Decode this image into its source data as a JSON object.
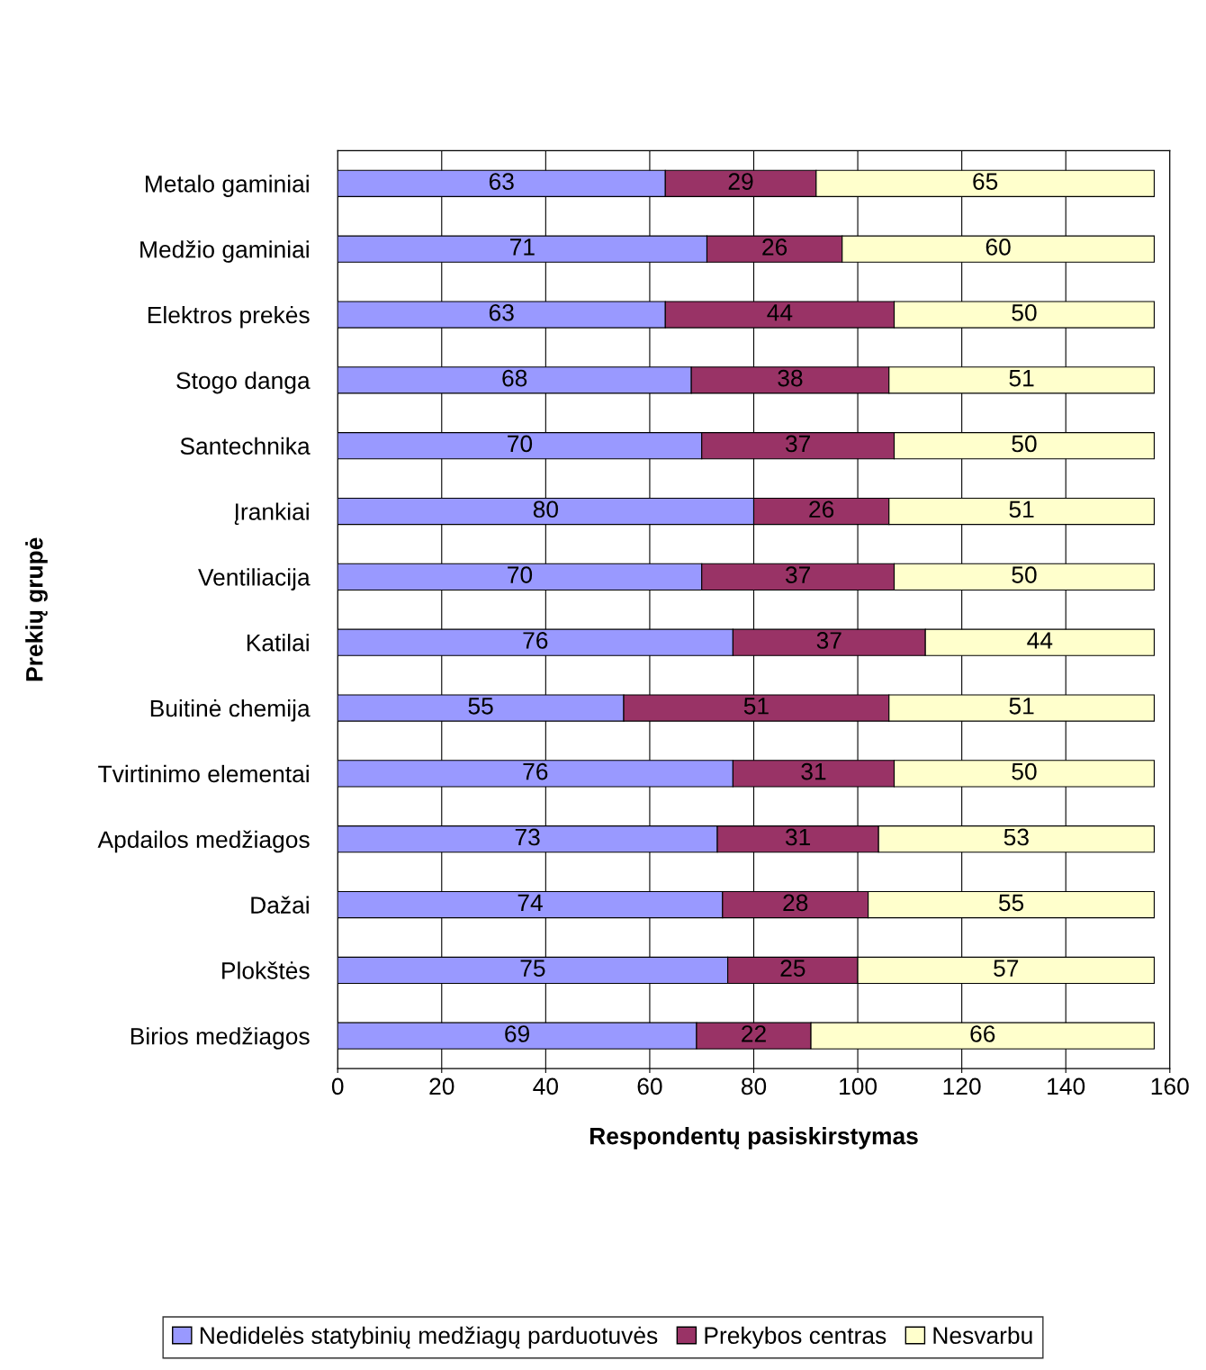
{
  "chart_data": {
    "type": "bar",
    "orientation": "horizontal",
    "stacked": true,
    "xlabel": "Respondentų pasiskirstymas",
    "ylabel": "Prekių grupė",
    "categories": [
      "Metalo gaminiai",
      "Medžio gaminiai",
      "Elektros prekės",
      "Stogo danga",
      "Santechnika",
      "Įrankiai",
      "Ventiliacija",
      "Katilai",
      "Buitinė chemija",
      "Tvirtinimo elementai",
      "Apdailos medžiagos",
      "Dažai",
      "Plokštės",
      "Birios medžiagos"
    ],
    "series": [
      {
        "name": "Nedidelės statybinių medžiagų parduotuvės",
        "color": "#9999ff",
        "values": [
          63,
          71,
          63,
          68,
          70,
          80,
          70,
          76,
          55,
          76,
          73,
          74,
          75,
          69
        ]
      },
      {
        "name": "Prekybos centras",
        "color": "#993366",
        "values": [
          29,
          26,
          44,
          38,
          37,
          26,
          37,
          37,
          51,
          31,
          31,
          28,
          25,
          22
        ]
      },
      {
        "name": "Nesvarbu",
        "color": "#ffffcc",
        "values": [
          65,
          60,
          50,
          51,
          50,
          51,
          50,
          44,
          51,
          50,
          53,
          55,
          57,
          66
        ]
      }
    ],
    "xlim": [
      0,
      160
    ],
    "xticks": [
      0,
      20,
      40,
      60,
      80,
      100,
      120,
      140,
      160
    ],
    "grid": "x",
    "legend": "bottom",
    "data_labels": true
  }
}
